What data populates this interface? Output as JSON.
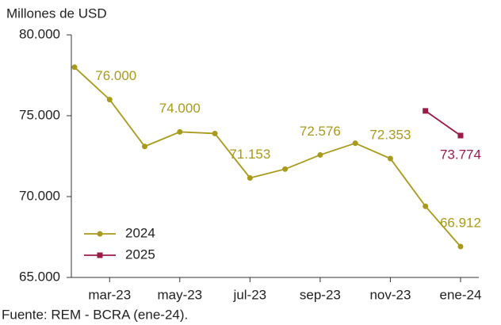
{
  "chart_data": {
    "type": "line",
    "y_axis_label": "Millones de USD",
    "source": "Fuente: REM - BCRA (ene-24).",
    "categories": [
      null,
      "mar-23",
      null,
      "may-23",
      null,
      "jul-23",
      null,
      "sep-23",
      null,
      "nov-23",
      null,
      "ene-24"
    ],
    "series": [
      {
        "name": "2024",
        "color": "#a89a1a",
        "values": [
          78000,
          76000,
          73100,
          74000,
          73900,
          71153,
          71700,
          72576,
          73300,
          72353,
          69400,
          66912
        ],
        "value_labels": [
          null,
          "76.000",
          null,
          "74.000",
          null,
          "71.153",
          null,
          "72.576",
          null,
          "72.353",
          null,
          "66.912"
        ]
      },
      {
        "name": "2025",
        "color": "#9b1b45",
        "values": [
          null,
          null,
          null,
          null,
          null,
          null,
          null,
          null,
          null,
          null,
          75300,
          73774
        ],
        "value_labels": [
          null,
          null,
          null,
          null,
          null,
          null,
          null,
          null,
          null,
          null,
          null,
          "73.774"
        ]
      }
    ],
    "ylim": [
      65000,
      80000
    ],
    "yticks": [
      {
        "value": 65000,
        "label": "65.000"
      },
      {
        "value": 70000,
        "label": "70.000"
      },
      {
        "value": 75000,
        "label": "75.000"
      },
      {
        "value": 80000,
        "label": "80.000"
      }
    ],
    "grid": false,
    "legend": "lower left"
  }
}
